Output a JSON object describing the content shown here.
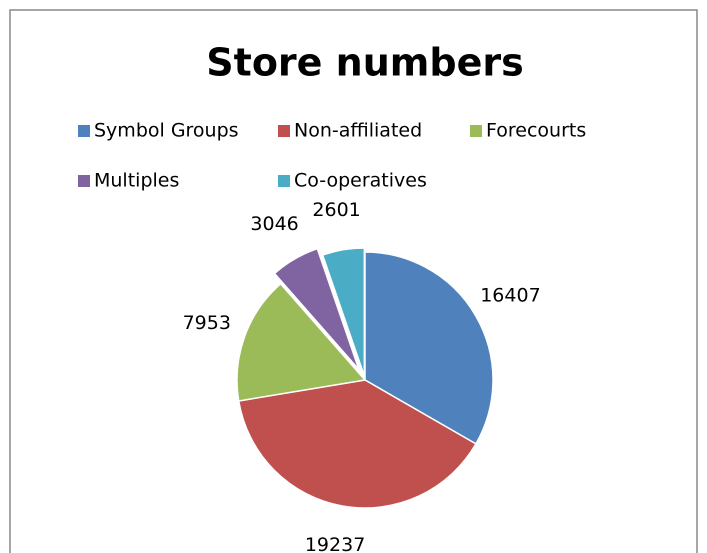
{
  "chart_data": {
    "type": "pie",
    "title": "Store numbers",
    "categories": [
      "Symbol Groups",
      "Non-affiliated",
      "Forecourts",
      "Multiples",
      "Co-operatives"
    ],
    "values": [
      16407,
      19237,
      7953,
      3046,
      2601
    ],
    "colors": [
      "#4f81bd",
      "#c0504d",
      "#9bbb59",
      "#8064a2",
      "#4bacc6"
    ],
    "legend": "top"
  }
}
